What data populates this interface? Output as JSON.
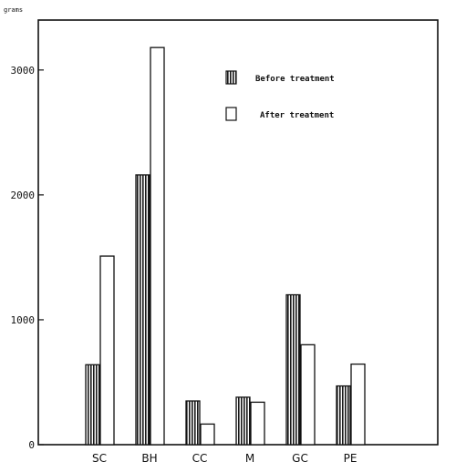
{
  "chart_data": {
    "type": "bar",
    "ylabel": "grams",
    "ylim": [
      0,
      3400
    ],
    "yticks": [
      0,
      1000,
      2000,
      3000
    ],
    "ytick_labels": [
      "0",
      "1000",
      "2000",
      "3000"
    ],
    "categories": [
      "SC",
      "BH",
      "CC",
      "M",
      "GC",
      "PE"
    ],
    "series": [
      {
        "name": "Before treatment",
        "pattern": "hatched",
        "values": [
          640,
          2160,
          350,
          380,
          1200,
          470
        ]
      },
      {
        "name": "After treatment",
        "pattern": "open",
        "values": [
          1510,
          3180,
          165,
          340,
          800,
          645
        ]
      }
    ],
    "legend_position": "top-right",
    "grid": false
  }
}
